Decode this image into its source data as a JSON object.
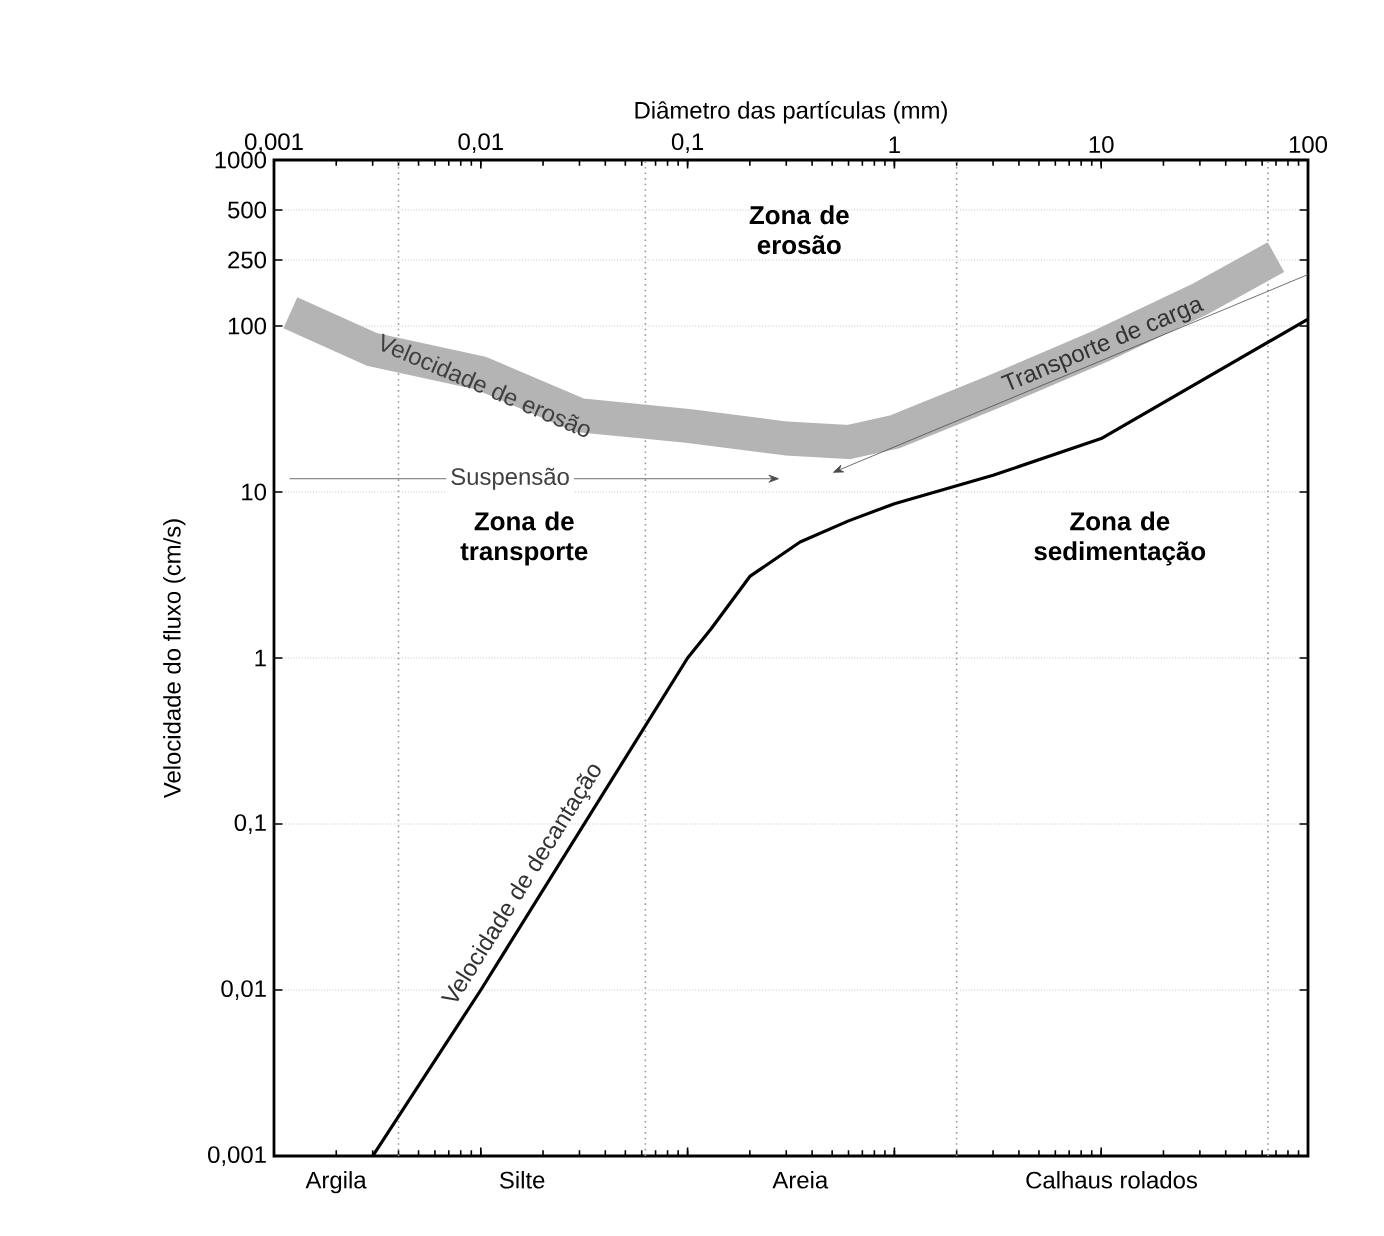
{
  "chart_data": {
    "type": "line",
    "xlabel": "Diâmetro das partículas (mm)",
    "ylabel": "Velocidade do fluxo (cm/s)",
    "log": "xy",
    "grid": "y",
    "marker": "none",
    "line_style": "solid",
    "xlim": [
      0.001,
      100
    ],
    "ylim": [
      0.001,
      1000
    ],
    "xticks": [
      {
        "value": 0.001,
        "label": "0,001"
      },
      {
        "value": 0.01,
        "label": "0,01"
      },
      {
        "value": 0.1,
        "label": "0,1"
      },
      1,
      10,
      100
    ],
    "yticks": [
      {
        "value": 0.001,
        "label": "0,001"
      },
      {
        "value": 0.01,
        "label": "0,01"
      },
      {
        "value": 0.1,
        "label": "0,1"
      },
      1,
      10,
      100,
      250,
      500,
      1000
    ],
    "series": [
      {
        "name": "Velocidade de erosão",
        "color": "#b4b4b4",
        "x": [
          0.0012,
          0.003,
          0.01,
          0.03,
          0.1,
          0.3,
          0.6,
          1,
          3,
          10,
          30,
          70
        ],
        "values": [
          120,
          72,
          52,
          29,
          25,
          21,
          20,
          23,
          40,
          76,
          145,
          260
        ]
      },
      {
        "name": "Velocidade de decantação",
        "color": "#000000",
        "x": [
          0.003,
          0.01,
          0.1,
          0.13,
          0.2,
          0.35,
          0.6,
          1,
          3,
          10,
          100
        ],
        "values": [
          0.001,
          0.01,
          1,
          1.5,
          3.1,
          5,
          6.7,
          8.5,
          12.6,
          21,
          110
        ]
      }
    ],
    "ref_lines": [
      {
        "axis": "x",
        "value": 0.004,
        "color": "#9a9a9a",
        "line_style": "dotted"
      },
      {
        "axis": "x",
        "value": 0.0625,
        "color": "#9a9a9a",
        "line_style": "dotted"
      },
      {
        "axis": "x",
        "value": 2,
        "color": "#9a9a9a",
        "line_style": "dotted"
      },
      {
        "axis": "x",
        "value": 64,
        "color": "#9a9a9a",
        "line_style": "dotted"
      }
    ],
    "annotations": [
      "Zona de erosão",
      "Zona de transporte",
      "Zona de sedimentação",
      "Suspensão",
      "Transporte de carga",
      "Argila",
      "Silte",
      "Areia",
      "Calhaus rolados"
    ]
  }
}
